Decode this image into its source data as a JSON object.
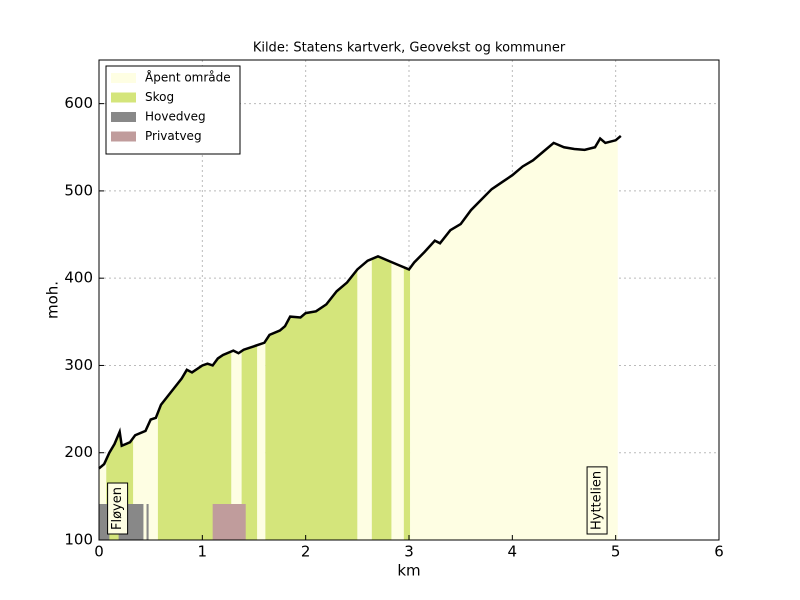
{
  "chart_data": {
    "type": "line",
    "title": "Kilde: Statens kartverk, Geovekst og kommuner",
    "xlabel": "km",
    "ylabel": "moh.",
    "xlim": [
      0,
      6
    ],
    "ylim": [
      100,
      650
    ],
    "xticks": [
      0,
      1,
      2,
      3,
      4,
      5,
      6
    ],
    "yticks": [
      100,
      200,
      300,
      400,
      500,
      600
    ],
    "grid": true,
    "legend": "upper left",
    "color": "#000000",
    "x": [
      0,
      0.05,
      0.1,
      0.15,
      0.2,
      0.22,
      0.3,
      0.35,
      0.45,
      0.5,
      0.55,
      0.6,
      0.7,
      0.8,
      0.85,
      0.9,
      1.0,
      1.05,
      1.1,
      1.15,
      1.2,
      1.3,
      1.35,
      1.4,
      1.5,
      1.6,
      1.65,
      1.75,
      1.8,
      1.85,
      1.95,
      2.0,
      2.1,
      2.2,
      2.3,
      2.4,
      2.5,
      2.6,
      2.7,
      2.8,
      2.9,
      3.0,
      3.05,
      3.15,
      3.25,
      3.3,
      3.4,
      3.5,
      3.6,
      3.7,
      3.8,
      3.9,
      4.0,
      4.1,
      4.2,
      4.3,
      4.4,
      4.5,
      4.6,
      4.7,
      4.8,
      4.85,
      4.9,
      5.0,
      5.05
    ],
    "values": [
      182,
      187,
      200,
      210,
      224,
      208,
      212,
      220,
      225,
      238,
      240,
      255,
      270,
      285,
      295,
      292,
      300,
      302,
      300,
      308,
      312,
      317,
      314,
      318,
      322,
      326,
      335,
      340,
      345,
      356,
      355,
      360,
      362,
      370,
      385,
      395,
      410,
      420,
      425,
      420,
      415,
      410,
      418,
      430,
      443,
      440,
      455,
      462,
      478,
      490,
      502,
      510,
      518,
      528,
      535,
      545,
      555,
      550,
      548,
      547,
      550,
      560,
      555,
      558,
      563
    ],
    "areas": [
      {
        "name": "Åpent område",
        "color": "#fefee3",
        "segments": [
          [
            0,
            0.07
          ],
          [
            0.33,
            0.57
          ],
          [
            1.28,
            1.38
          ],
          [
            1.53,
            1.61
          ],
          [
            2.5,
            2.64
          ],
          [
            2.83,
            2.95
          ],
          [
            3.01,
            5.02
          ]
        ]
      },
      {
        "name": "Skog",
        "color": "#d4e57b",
        "segments": [
          [
            0.07,
            0.33
          ],
          [
            0.57,
            1.28
          ],
          [
            1.38,
            1.53
          ],
          [
            1.61,
            2.5
          ],
          [
            2.64,
            2.83
          ],
          [
            2.95,
            3.01
          ]
        ]
      }
    ],
    "roads": [
      {
        "name": "Hovedveg",
        "color": "#888888",
        "segments": [
          [
            0,
            0.1
          ],
          [
            0.19,
            0.43
          ],
          [
            0.46,
            0.48
          ]
        ]
      },
      {
        "name": "Privatveg",
        "color": "#c09c9c",
        "segments": [
          [
            1.1,
            1.42
          ]
        ]
      }
    ],
    "annotations": [
      {
        "text": "Fløyen",
        "x": 0.18
      },
      {
        "text": "Hyttelien",
        "x": 4.82
      }
    ]
  }
}
